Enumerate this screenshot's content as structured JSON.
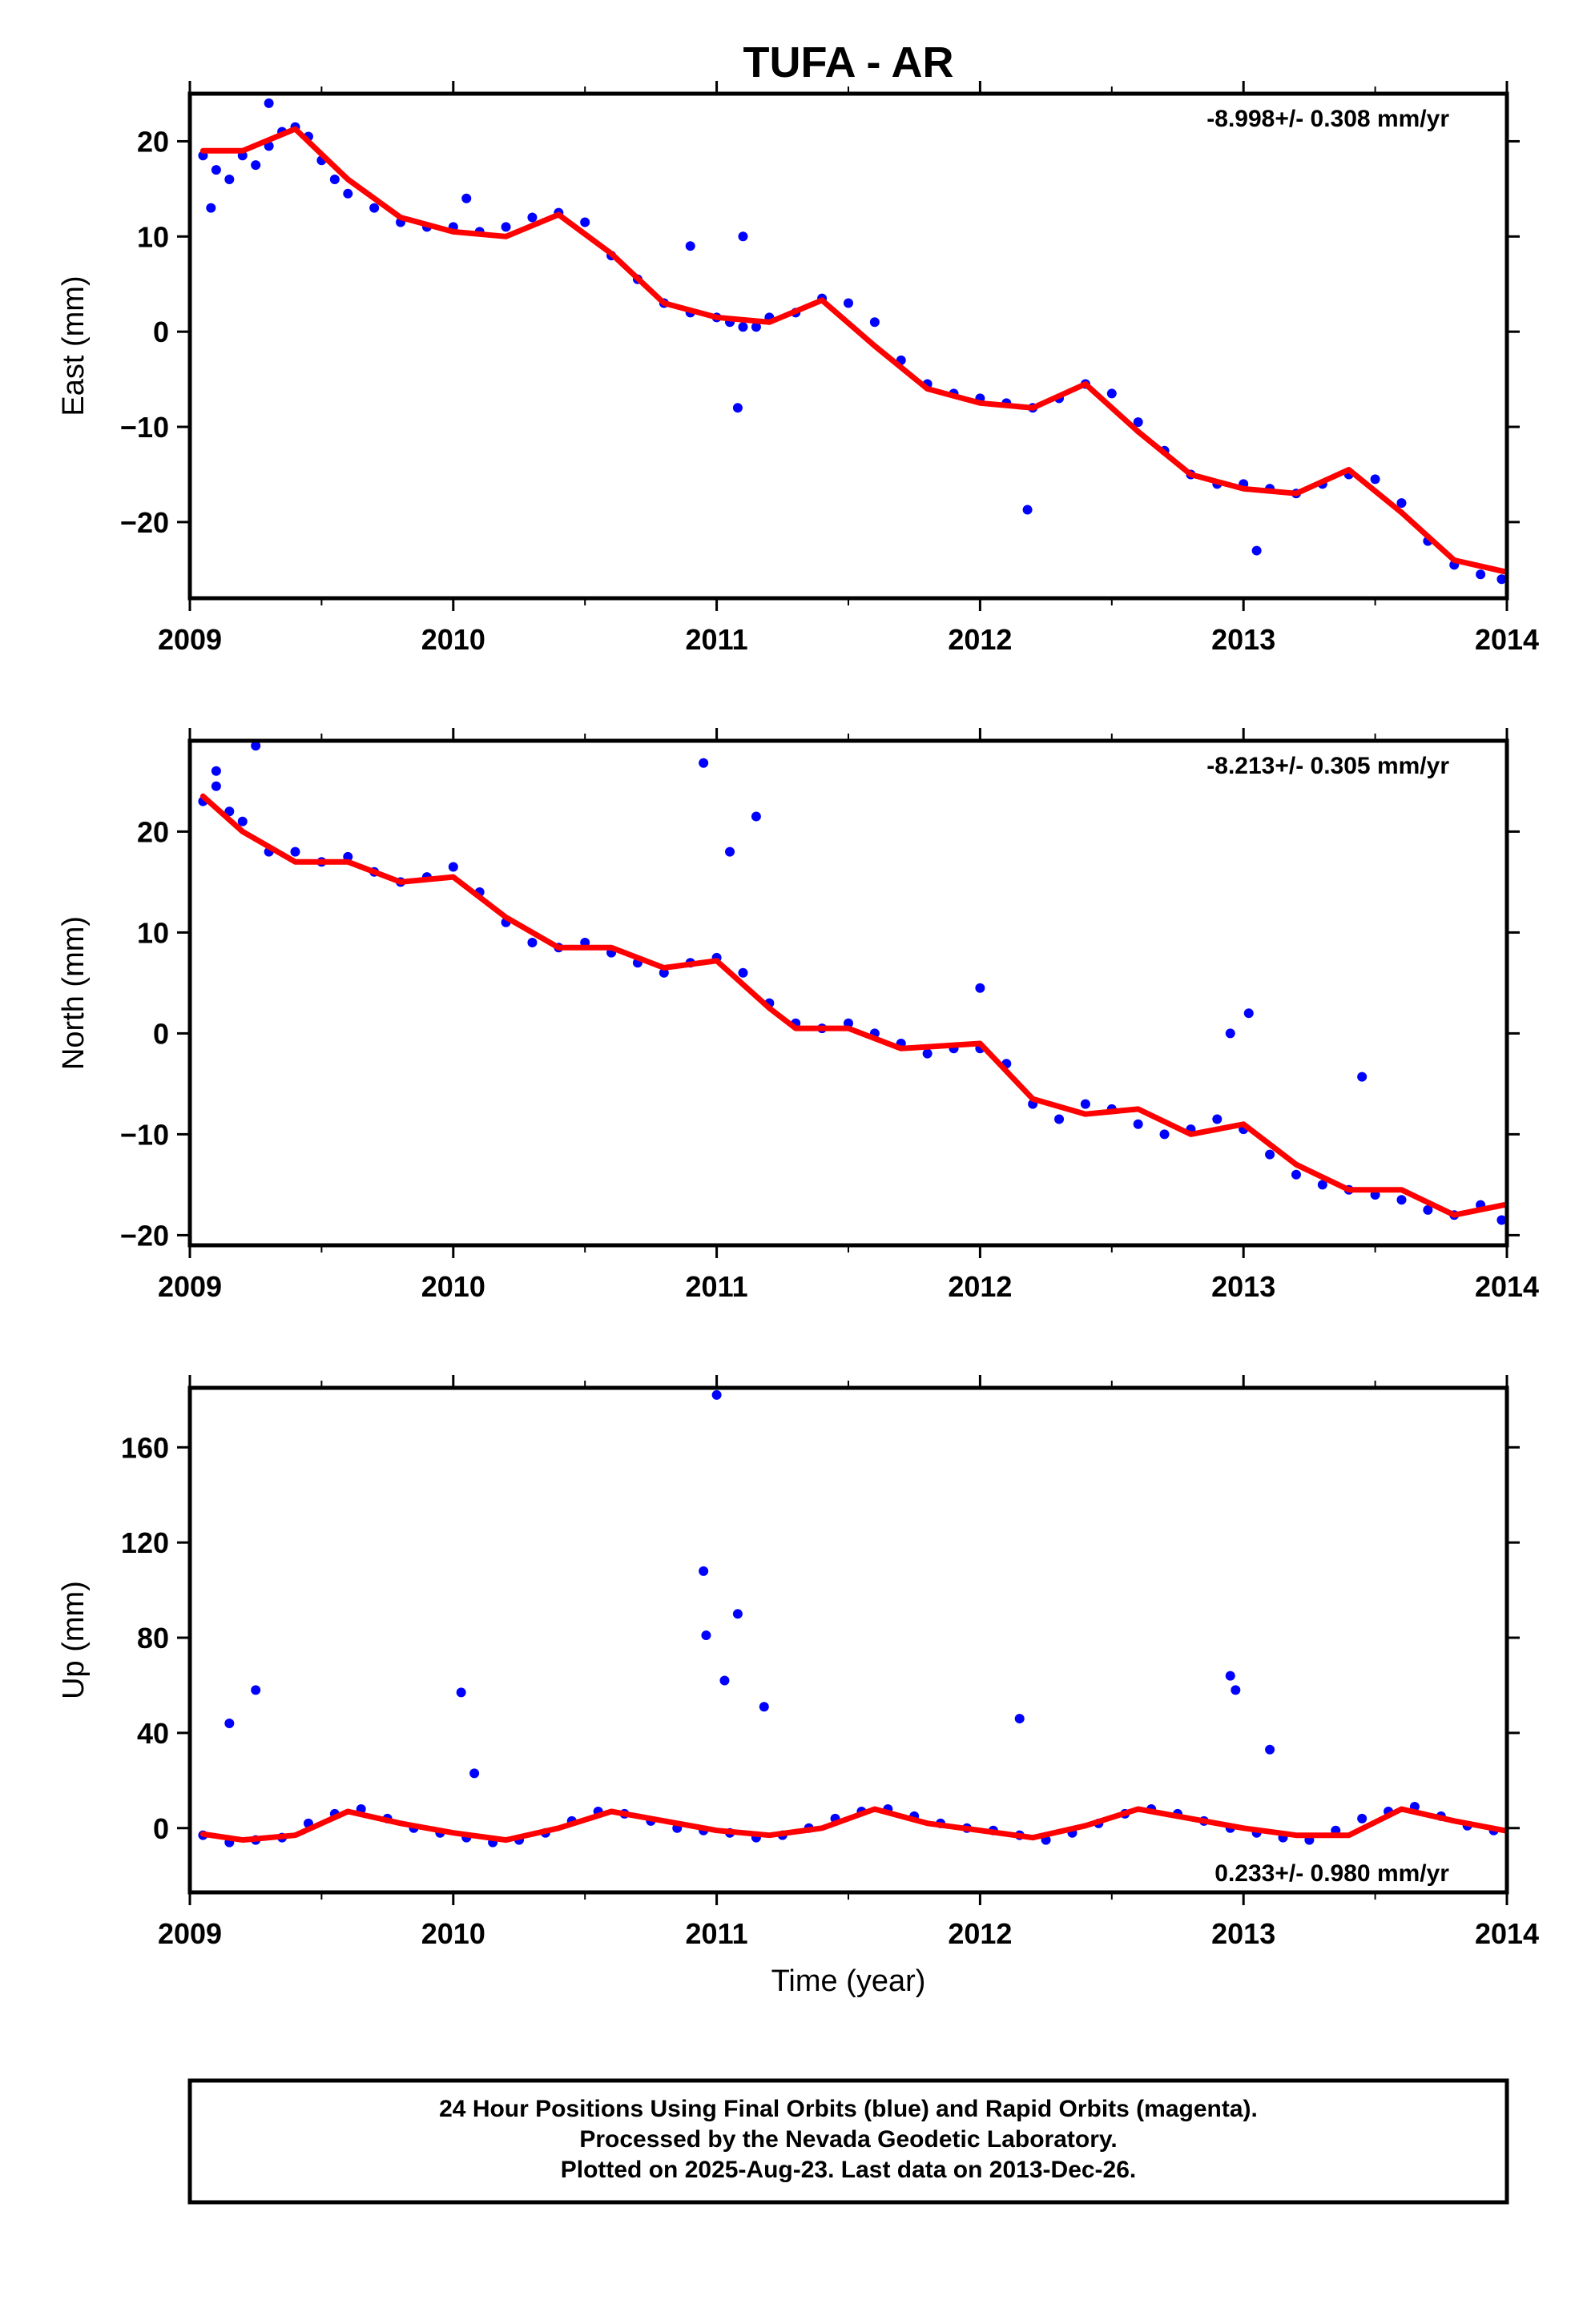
{
  "title": "TUFA - AR",
  "footer": {
    "lines": [
      "24 Hour Positions Using Final Orbits (blue) and Rapid Orbits (magenta).",
      "Processed by the Nevada Geodetic Laboratory.",
      "Plotted on 2025-Aug-23. Last data on 2013-Dec-26."
    ]
  },
  "colors": {
    "points": "#0000ff",
    "fit": "#ff0000",
    "frame": "#000000"
  },
  "chart_data": [
    {
      "type": "scatter",
      "ylabel": "East (mm)",
      "xlabel": "",
      "rate_label": "-8.998+/- 0.308 mm/yr",
      "xlim": [
        2009,
        2014
      ],
      "ylim": [
        -28,
        25
      ],
      "xticks": [
        "2009",
        "2010",
        "2011",
        "2012",
        "2013",
        "2014"
      ],
      "yticks": [
        -20,
        -10,
        0,
        10,
        20
      ],
      "fit_line": {
        "x": [
          2009.05,
          2009.2,
          2009.4,
          2009.6,
          2009.8,
          2010.0,
          2010.2,
          2010.4,
          2010.6,
          2010.8,
          2011.0,
          2011.2,
          2011.4,
          2011.6,
          2011.8,
          2012.0,
          2012.2,
          2012.4,
          2012.6,
          2012.8,
          2013.0,
          2013.2,
          2013.4,
          2013.6,
          2013.8,
          2013.99
        ],
        "y": [
          19.0,
          19.0,
          21.3,
          16.0,
          12.0,
          10.5,
          10.0,
          12.3,
          8.2,
          3.0,
          1.5,
          1.0,
          3.3,
          -1.5,
          -6.0,
          -7.5,
          -8.0,
          -5.5,
          -10.5,
          -15.0,
          -16.5,
          -17.0,
          -14.5,
          -19.0,
          -24.0,
          -25.2
        ]
      },
      "points": {
        "x": [
          2009.05,
          2009.1,
          2009.15,
          2009.2,
          2009.25,
          2009.3,
          2009.35,
          2009.4,
          2009.45,
          2009.5,
          2009.55,
          2009.6,
          2009.7,
          2009.8,
          2009.9,
          2010.0,
          2010.1,
          2010.2,
          2010.3,
          2010.4,
          2010.5,
          2010.6,
          2010.7,
          2010.8,
          2010.9,
          2011.0,
          2011.05,
          2011.1,
          2011.15,
          2011.2,
          2011.3,
          2011.4,
          2011.5,
          2011.6,
          2011.7,
          2011.8,
          2011.9,
          2012.0,
          2012.1,
          2012.2,
          2012.3,
          2012.4,
          2012.5,
          2012.6,
          2012.7,
          2012.8,
          2012.9,
          2013.0,
          2013.1,
          2013.2,
          2013.3,
          2013.4,
          2013.5,
          2013.6,
          2013.7,
          2013.8,
          2013.9,
          2013.98,
          2009.08,
          2009.3,
          2010.05,
          2011.08,
          2011.1,
          2010.9,
          2012.18,
          2013.05
        ],
        "y": [
          18.5,
          17.0,
          16.0,
          18.5,
          17.5,
          19.5,
          21.0,
          21.5,
          20.5,
          18.0,
          16.0,
          14.5,
          13.0,
          11.5,
          11.0,
          11.0,
          10.5,
          11.0,
          12.0,
          12.5,
          11.5,
          8.0,
          5.5,
          3.0,
          2.0,
          1.5,
          1.0,
          0.5,
          0.5,
          1.5,
          2.0,
          3.5,
          3.0,
          1.0,
          -3.0,
          -5.5,
          -6.5,
          -7.0,
          -7.5,
          -8.0,
          -7.0,
          -5.5,
          -6.5,
          -9.5,
          -12.5,
          -15.0,
          -16.0,
          -16.0,
          -16.5,
          -17.0,
          -16.0,
          -15.0,
          -15.5,
          -18.0,
          -22.0,
          -24.5,
          -25.5,
          -26.0,
          13.0,
          24.0,
          14.0,
          -8.0,
          10.0,
          9.0,
          -18.7,
          -23.0
        ]
      }
    },
    {
      "type": "scatter",
      "ylabel": "North (mm)",
      "xlabel": "",
      "rate_label": "-8.213+/- 0.305 mm/yr",
      "xlim": [
        2009,
        2014
      ],
      "ylim": [
        -21,
        29
      ],
      "xticks": [
        "2009",
        "2010",
        "2011",
        "2012",
        "2013",
        "2014"
      ],
      "yticks": [
        -20,
        -10,
        0,
        10,
        20
      ],
      "fit_line": {
        "x": [
          2009.05,
          2009.2,
          2009.4,
          2009.6,
          2009.8,
          2010.0,
          2010.2,
          2010.4,
          2010.6,
          2010.8,
          2011.0,
          2011.2,
          2011.3,
          2011.5,
          2011.7,
          2012.0,
          2012.2,
          2012.4,
          2012.6,
          2012.8,
          2013.0,
          2013.2,
          2013.4,
          2013.6,
          2013.8,
          2013.99
        ],
        "y": [
          23.5,
          20.0,
          17.0,
          17.0,
          15.0,
          15.5,
          11.5,
          8.5,
          8.5,
          6.5,
          7.2,
          2.5,
          0.5,
          0.5,
          -1.5,
          -1.0,
          -6.5,
          -8.0,
          -7.5,
          -10.0,
          -9.0,
          -13.0,
          -15.5,
          -15.5,
          -18.0,
          -17.0
        ]
      },
      "points": {
        "x": [
          2009.05,
          2009.1,
          2009.15,
          2009.2,
          2009.3,
          2009.4,
          2009.5,
          2009.6,
          2009.7,
          2009.8,
          2009.9,
          2010.0,
          2010.1,
          2010.2,
          2010.3,
          2010.4,
          2010.5,
          2010.6,
          2010.7,
          2010.8,
          2010.9,
          2011.0,
          2011.1,
          2011.2,
          2011.3,
          2011.4,
          2011.5,
          2011.6,
          2011.7,
          2011.8,
          2011.9,
          2012.0,
          2012.1,
          2012.2,
          2012.3,
          2012.4,
          2012.5,
          2012.6,
          2012.7,
          2012.8,
          2012.9,
          2013.0,
          2013.1,
          2013.2,
          2013.3,
          2013.4,
          2013.5,
          2013.6,
          2013.7,
          2013.8,
          2013.9,
          2013.98,
          2009.1,
          2009.25,
          2010.95,
          2011.05,
          2011.15,
          2012.0,
          2012.95,
          2013.02,
          2013.45
        ],
        "y": [
          23.0,
          24.5,
          22.0,
          21.0,
          18.0,
          18.0,
          17.0,
          17.5,
          16.0,
          15.0,
          15.5,
          16.5,
          14.0,
          11.0,
          9.0,
          8.5,
          9.0,
          8.0,
          7.0,
          6.0,
          7.0,
          7.5,
          6.0,
          3.0,
          1.0,
          0.5,
          1.0,
          0.0,
          -1.0,
          -2.0,
          -1.5,
          -1.5,
          -3.0,
          -7.0,
          -8.5,
          -7.0,
          -7.5,
          -9.0,
          -10.0,
          -9.5,
          -8.5,
          -9.5,
          -12.0,
          -14.0,
          -15.0,
          -15.5,
          -16.0,
          -16.5,
          -17.5,
          -18.0,
          -17.0,
          -18.5,
          26.0,
          28.5,
          26.8,
          18.0,
          21.5,
          4.5,
          0.0,
          2.0,
          -4.3
        ]
      }
    },
    {
      "type": "scatter",
      "ylabel": "Up (mm)",
      "xlabel": "Time (year)",
      "rate_label": "0.233+/- 0.980 mm/yr",
      "xlim": [
        2009,
        2014
      ],
      "ylim": [
        -27,
        185
      ],
      "xticks": [
        "2009",
        "2010",
        "2011",
        "2012",
        "2013",
        "2014"
      ],
      "yticks": [
        0,
        40,
        80,
        120,
        160
      ],
      "fit_line": {
        "x": [
          2009.05,
          2009.2,
          2009.4,
          2009.6,
          2009.8,
          2010.0,
          2010.2,
          2010.4,
          2010.6,
          2010.8,
          2011.0,
          2011.2,
          2011.4,
          2011.6,
          2011.8,
          2012.0,
          2012.2,
          2012.4,
          2012.6,
          2012.8,
          2013.0,
          2013.2,
          2013.4,
          2013.6,
          2013.8,
          2013.99
        ],
        "y": [
          -2.5,
          -5.0,
          -3.0,
          7.0,
          2.0,
          -2.0,
          -5.0,
          0.0,
          7.0,
          3.0,
          -1.0,
          -3.0,
          0.0,
          8.0,
          2.0,
          -1.0,
          -4.0,
          1.0,
          8.0,
          4.0,
          0.0,
          -3.0,
          -3.0,
          8.0,
          3.0,
          -1.0
        ]
      },
      "points": {
        "x": [
          2009.05,
          2009.15,
          2009.25,
          2009.35,
          2009.45,
          2009.55,
          2009.65,
          2009.75,
          2009.85,
          2009.95,
          2010.05,
          2010.15,
          2010.25,
          2010.35,
          2010.45,
          2010.55,
          2010.65,
          2010.75,
          2010.85,
          2010.95,
          2011.05,
          2011.15,
          2011.25,
          2011.35,
          2011.45,
          2011.55,
          2011.65,
          2011.75,
          2011.85,
          2011.95,
          2012.05,
          2012.15,
          2012.25,
          2012.35,
          2012.45,
          2012.55,
          2012.65,
          2012.75,
          2012.85,
          2012.95,
          2013.05,
          2013.15,
          2013.25,
          2013.35,
          2013.45,
          2013.55,
          2013.65,
          2013.75,
          2013.85,
          2013.95,
          2009.15,
          2009.25,
          2010.03,
          2010.08,
          2010.95,
          2010.96,
          2011.0,
          2011.03,
          2011.08,
          2011.18,
          2012.15,
          2012.95,
          2012.97,
          2013.1
        ],
        "y": [
          -3.0,
          -6.0,
          -5.0,
          -4.0,
          2.0,
          6.0,
          8.0,
          4.0,
          0.0,
          -2.0,
          -4.0,
          -6.0,
          -5.0,
          -2.0,
          3.0,
          7.0,
          6.0,
          3.0,
          0.0,
          -1.0,
          -2.0,
          -4.0,
          -3.0,
          0.0,
          4.0,
          7.0,
          8.0,
          5.0,
          2.0,
          0.0,
          -1.0,
          -3.0,
          -5.0,
          -2.0,
          2.0,
          6.0,
          8.0,
          6.0,
          3.0,
          0.0,
          -2.0,
          -4.0,
          -5.0,
          -1.0,
          4.0,
          7.0,
          9.0,
          5.0,
          1.0,
          -1.0,
          44.0,
          58.0,
          57.0,
          23.0,
          108.0,
          81.0,
          182.0,
          62.0,
          90.0,
          51.0,
          46.0,
          64.0,
          58.0,
          33.0
        ]
      }
    }
  ]
}
